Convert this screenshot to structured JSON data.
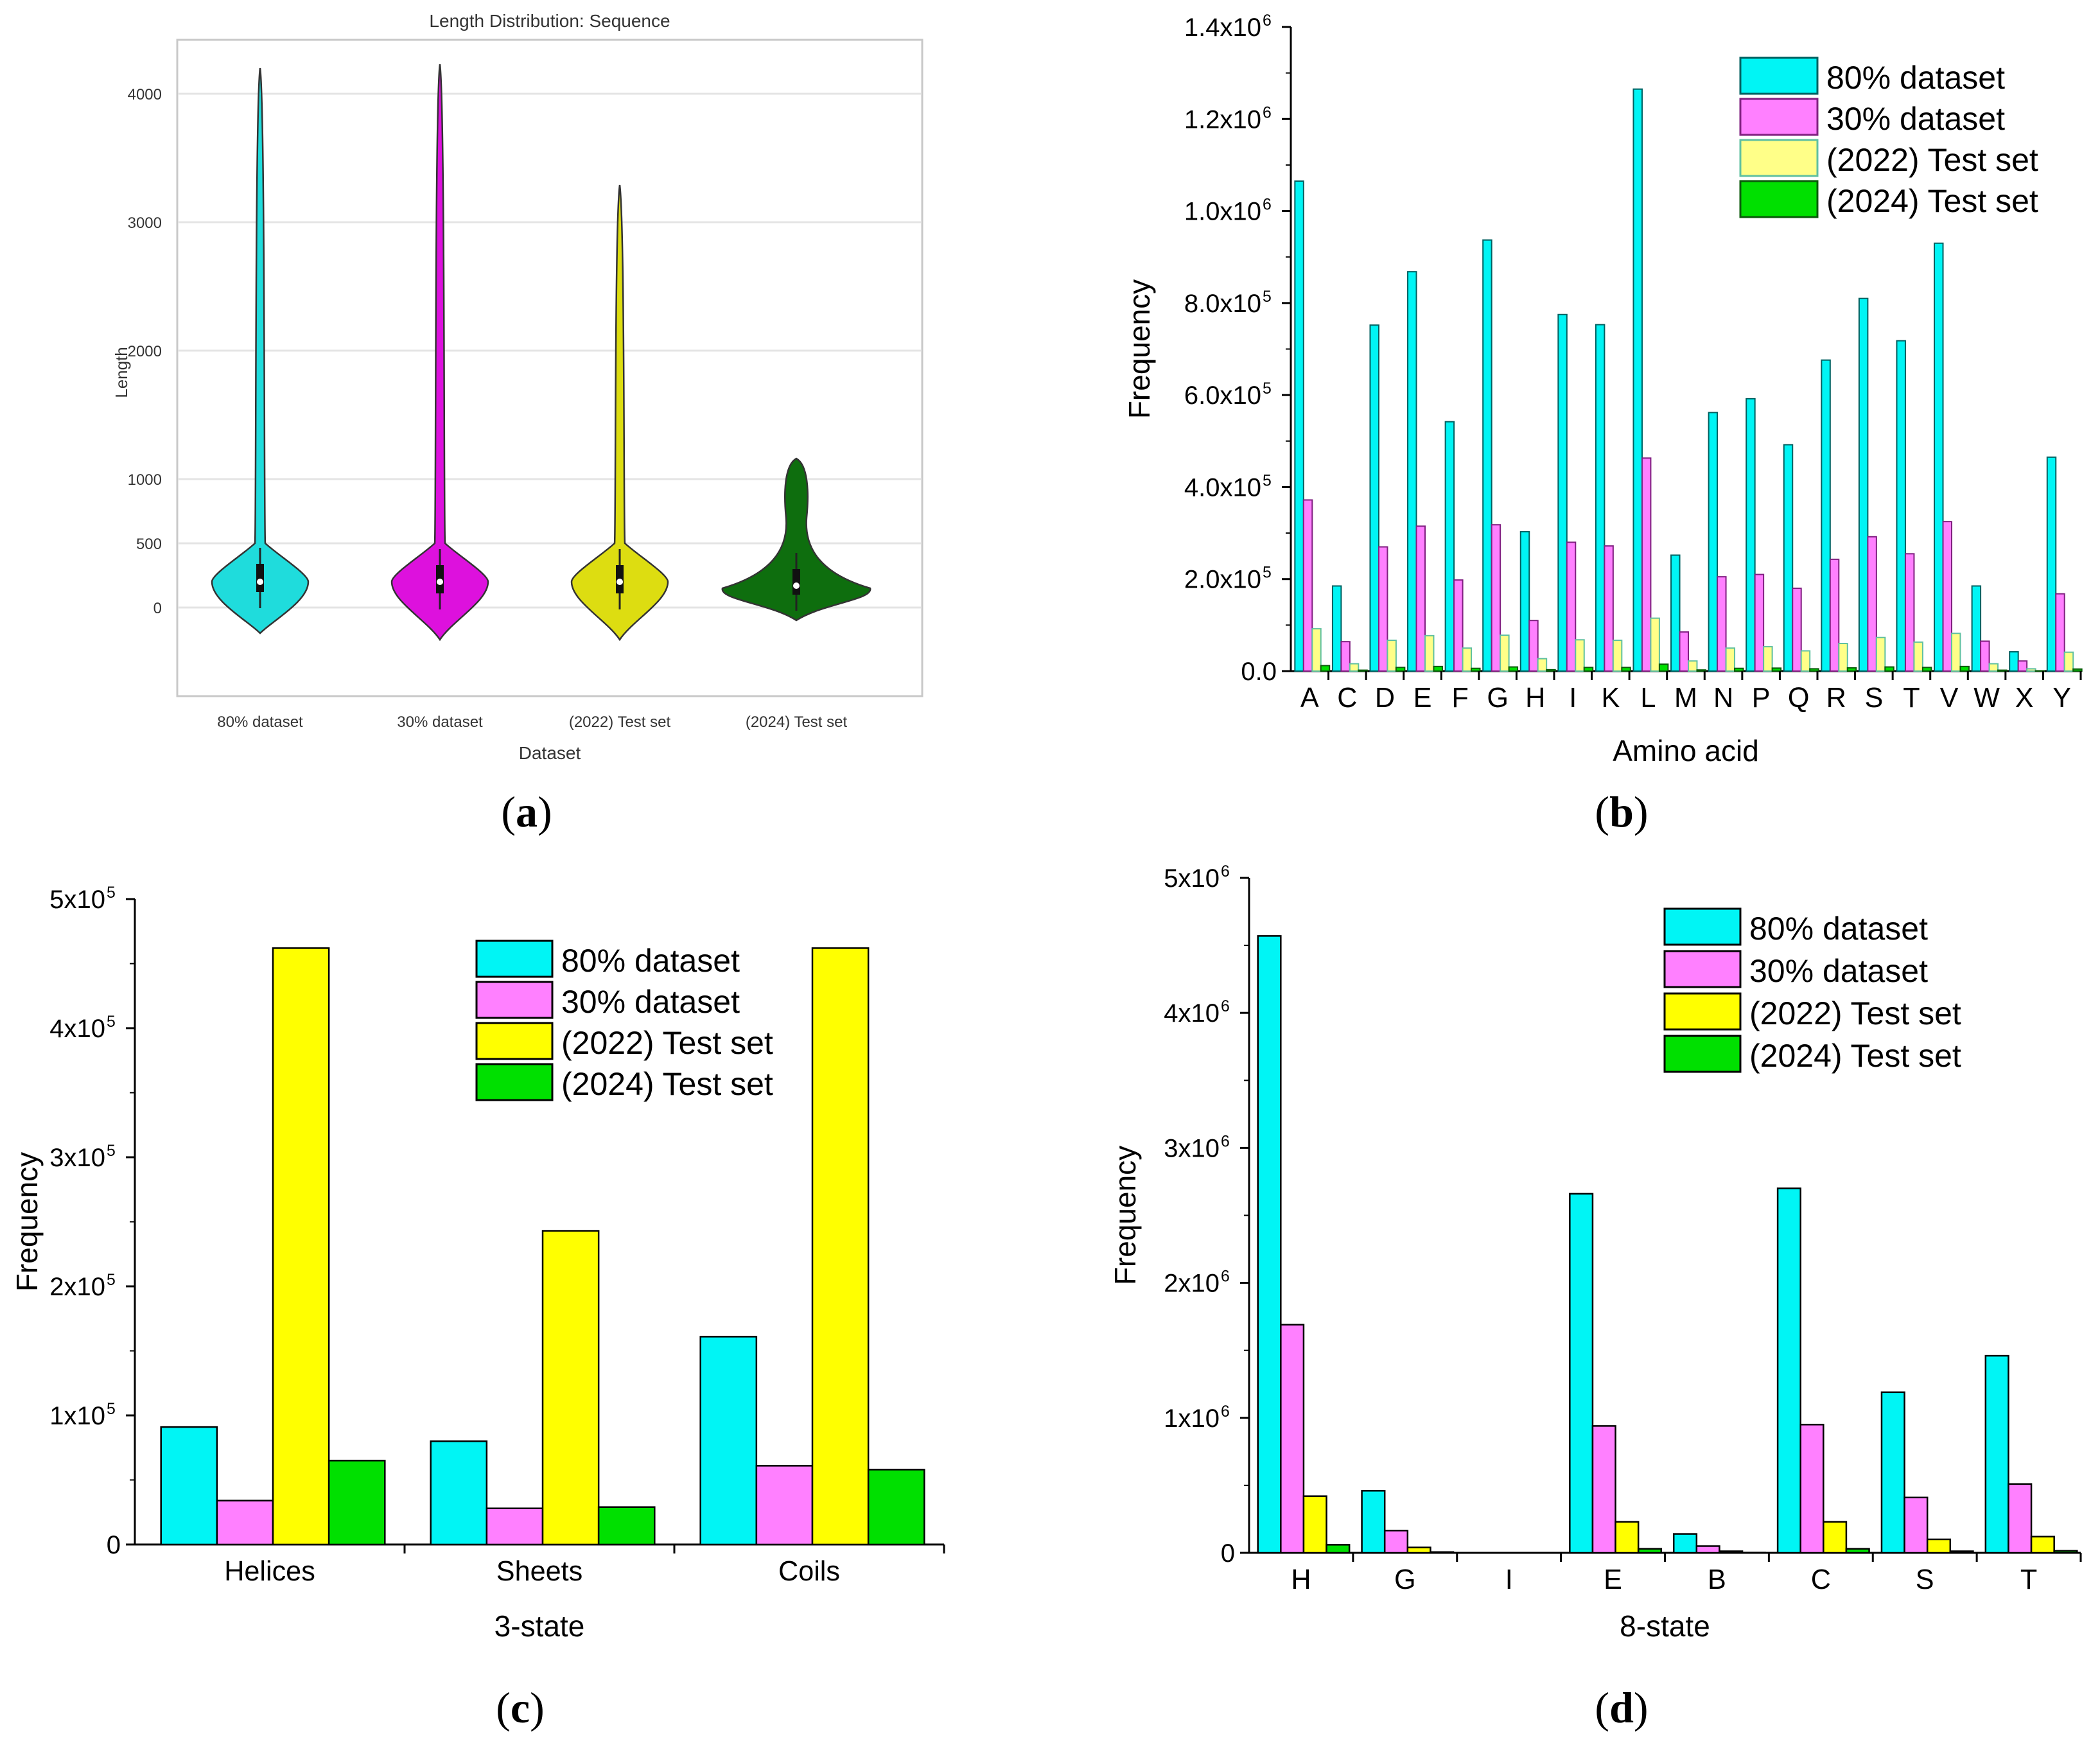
{
  "colors": {
    "d80": "#00f5f5",
    "d30": "#ff80ff",
    "t22": "#ffff00",
    "t22b": "#ffff88",
    "t24": "#00e000",
    "v80": "#1fdcdc",
    "v30": "#dd11dd",
    "v22": "#dddd11",
    "v24": "#0e6e0e"
  },
  "captions": {
    "a": "a",
    "b": "b",
    "c": "c",
    "d": "d"
  },
  "chart_data": [
    {
      "id": "a",
      "type": "violin",
      "title": "Length Distribution: Sequence",
      "xlabel": "Dataset",
      "ylabel": "Length",
      "categories": [
        "80% dataset",
        "30% dataset",
        "(2022) Test set",
        "(2024) Test set"
      ],
      "yticks": [
        0,
        500,
        1000,
        2000,
        3000,
        4000
      ],
      "ytick_labels": [
        "0",
        "500",
        "1000",
        "2000",
        "3000",
        "4000"
      ],
      "grid": true,
      "series": [
        {
          "min": -200,
          "max": 4200,
          "median": 200,
          "q1": 120,
          "q3": 340
        },
        {
          "min": -250,
          "max": 4230,
          "median": 200,
          "q1": 110,
          "q3": 330
        },
        {
          "min": -250,
          "max": 3290,
          "median": 200,
          "q1": 110,
          "q3": 330
        },
        {
          "min": -100,
          "max": 1160,
          "median": 170,
          "q1": 100,
          "q3": 300
        }
      ]
    },
    {
      "id": "b",
      "type": "bar",
      "xlabel": "Amino acid",
      "ylabel": "Frequency",
      "ylim": [
        0,
        1400000
      ],
      "ytick_labels": [
        "0.0",
        "2.0x10",
        "4.0x10",
        "6.0x10",
        "8.0x10",
        "1.0x10",
        "1.2x10",
        "1.4x10"
      ],
      "ytick_exponents": [
        "",
        "5",
        "5",
        "5",
        "5",
        "6",
        "6",
        "6"
      ],
      "legend_position": "top-right",
      "categories": [
        "A",
        "C",
        "D",
        "E",
        "F",
        "G",
        "H",
        "I",
        "K",
        "L",
        "M",
        "N",
        "P",
        "Q",
        "R",
        "S",
        "T",
        "V",
        "W",
        "X",
        "Y"
      ],
      "series": [
        {
          "name": "80% dataset",
          "values": [
            1065000,
            185000,
            752000,
            868000,
            542000,
            937000,
            303000,
            775000,
            753000,
            1265000,
            252000,
            562000,
            592000,
            492000,
            676000,
            810000,
            718000,
            930000,
            185000,
            42000,
            465000
          ]
        },
        {
          "name": "30% dataset",
          "values": [
            372000,
            64000,
            270000,
            315000,
            198000,
            318000,
            110000,
            280000,
            272000,
            463000,
            85000,
            205000,
            210000,
            180000,
            243000,
            292000,
            255000,
            325000,
            65000,
            22000,
            168000
          ]
        },
        {
          "name": "(2022) Test set",
          "values": [
            92000,
            16000,
            67000,
            77000,
            50000,
            78000,
            27000,
            68000,
            67000,
            115000,
            22000,
            50000,
            53000,
            44000,
            60000,
            73000,
            63000,
            82000,
            16000,
            5000,
            41000
          ]
        },
        {
          "name": "(2024) Test set",
          "values": [
            12000,
            2000,
            8000,
            10000,
            6000,
            9000,
            3000,
            8000,
            8000,
            15000,
            2500,
            6000,
            6500,
            5000,
            7000,
            9000,
            8000,
            10000,
            2000,
            500,
            4500
          ]
        }
      ]
    },
    {
      "id": "c",
      "type": "bar",
      "xlabel": "3-state",
      "ylabel": "Frequency",
      "ylim": [
        0,
        500000
      ],
      "ytick_labels": [
        "0",
        "1x10",
        "2x10",
        "3x10",
        "4x10",
        "5x10"
      ],
      "ytick_exponents": [
        "",
        "5",
        "5",
        "5",
        "5",
        "5"
      ],
      "legend_position": "top-right",
      "categories": [
        "Helices",
        "Sheets",
        "Coils"
      ],
      "series": [
        {
          "name": "80% dataset",
          "values": [
            91000,
            80000,
            161000
          ]
        },
        {
          "name": "30% dataset",
          "values": [
            34000,
            28000,
            61000
          ]
        },
        {
          "name": "(2022) Test set",
          "values": [
            462000,
            243000,
            462000
          ]
        },
        {
          "name": "(2024) Test set",
          "values": [
            65000,
            29000,
            58000
          ]
        }
      ]
    },
    {
      "id": "d",
      "type": "bar",
      "xlabel": "8-state",
      "ylabel": "Frequency",
      "ylim": [
        0,
        5000000
      ],
      "ytick_labels": [
        "0",
        "1x10",
        "2x10",
        "3x10",
        "4x10",
        "5x10"
      ],
      "ytick_exponents": [
        "",
        "6",
        "6",
        "6",
        "6",
        "6"
      ],
      "legend_position": "top-right",
      "categories": [
        "H",
        "G",
        "I",
        "E",
        "B",
        "C",
        "S",
        "T"
      ],
      "series": [
        {
          "name": "80% dataset",
          "values": [
            4570000,
            460000,
            0,
            2660000,
            140000,
            2700000,
            1190000,
            1460000
          ]
        },
        {
          "name": "30% dataset",
          "values": [
            1690000,
            165000,
            0,
            940000,
            50000,
            950000,
            410000,
            510000
          ]
        },
        {
          "name": "(2022) Test set",
          "values": [
            420000,
            40000,
            0,
            230000,
            12000,
            230000,
            100000,
            120000
          ]
        },
        {
          "name": "(2024) Test set",
          "values": [
            60000,
            6000,
            0,
            30000,
            2000,
            30000,
            12000,
            15000
          ]
        }
      ]
    }
  ]
}
